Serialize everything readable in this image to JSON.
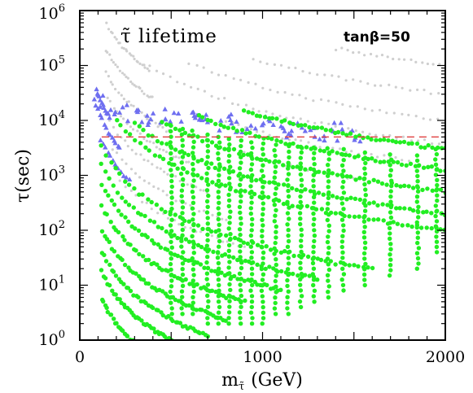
{
  "chart_data": {
    "type": "scatter",
    "title": "τ̃ lifetime",
    "annotation": "tanβ=50",
    "xlabel": "m",
    "xlabel_sub": "τ̃",
    "xlabel_unit": "(GeV)",
    "ylabel": "τ(sec)",
    "xlim": [
      0,
      2000
    ],
    "ylim_log10": [
      0,
      6
    ],
    "y_scale": "log",
    "x_ticks": [
      "0",
      "1000",
      "2000"
    ],
    "y_ticks": [
      {
        "base": "10",
        "exp": "0"
      },
      {
        "base": "10",
        "exp": "1"
      },
      {
        "base": "10",
        "exp": "2"
      },
      {
        "base": "10",
        "exp": "3"
      },
      {
        "base": "10",
        "exp": "4"
      },
      {
        "base": "10",
        "exp": "5"
      },
      {
        "base": "10",
        "exp": "6"
      }
    ],
    "reference_line": {
      "y": 5000,
      "style": "dashed",
      "color": "#e04040"
    },
    "series": [
      {
        "color": "#cfcfcf",
        "marker": "small-dot",
        "curves": [
          {
            "K": 12000000000.0,
            "xmin": 150,
            "xmax": 380,
            "n": 24
          },
          {
            "K": 4000000000.0,
            "xmin": 140,
            "xmax": 400,
            "n": 24
          },
          {
            "K": 1500000000.0,
            "xmin": 140,
            "xmax": 500,
            "n": 26
          },
          {
            "K": 600000000.0,
            "xmin": 150,
            "xmax": 600,
            "n": 26
          },
          {
            "K": 250000000.0,
            "xmin": 160,
            "xmax": 700,
            "n": 26
          },
          {
            "K": 100000000.0,
            "xmin": 180,
            "xmax": 800,
            "n": 26
          },
          {
            "K": 40000000.0,
            "xmin": 220,
            "xmax": 900,
            "n": 24
          },
          {
            "K": 15000000000.0,
            "xmin": 380,
            "xmax": 2000,
            "n": 44
          },
          {
            "K": 40000000000.0,
            "xmin": 600,
            "xmax": 2000,
            "n": 36
          },
          {
            "K": 120000000000.0,
            "xmin": 950,
            "xmax": 2000,
            "n": 28
          },
          {
            "K": 400000000000.0,
            "xmin": 1400,
            "xmax": 2000,
            "n": 20
          },
          {
            "K": 6000000000.0,
            "xmin": 800,
            "xmax": 1800,
            "n": 30
          },
          {
            "K": 2000000000.0,
            "xmin": 900,
            "xmax": 1500,
            "n": 20
          }
        ]
      },
      {
        "color": "#6f6ff0",
        "marker": "triangle",
        "curves": [
          {
            "K": 300000000.0,
            "xmin": 100,
            "xmax": 160,
            "n": 10
          },
          {
            "K": 150000000.0,
            "xmin": 100,
            "xmax": 220,
            "n": 12
          },
          {
            "K": 60000000.0,
            "xmin": 110,
            "xmax": 270,
            "n": 12
          }
        ],
        "band": [
          [
            120,
            20000
          ],
          [
            200,
            13000
          ],
          [
            300,
            10500
          ],
          [
            400,
            9500
          ],
          [
            500,
            9000
          ],
          [
            600,
            8500
          ],
          [
            700,
            8000
          ],
          [
            800,
            7600
          ],
          [
            900,
            7000
          ],
          [
            1000,
            6300
          ],
          [
            1100,
            5700
          ],
          [
            1200,
            5300
          ],
          [
            1300,
            5000
          ],
          [
            1400,
            4900
          ],
          [
            1500,
            4700
          ]
        ]
      },
      {
        "color": "#22ee22",
        "marker": "large-dot",
        "curves": [
          {
            "K": 50000000.0,
            "xmin": 120,
            "xmax": 1600,
            "n": 60
          },
          {
            "K": 22000000.0,
            "xmin": 120,
            "xmax": 1300,
            "n": 55
          },
          {
            "K": 10000000.0,
            "xmin": 120,
            "xmax": 1100,
            "n": 55
          },
          {
            "K": 4000000.0,
            "xmin": 120,
            "xmax": 900,
            "n": 50
          },
          {
            "K": 1500000.0,
            "xmin": 120,
            "xmax": 800,
            "n": 48
          },
          {
            "K": 600000.0,
            "xmin": 120,
            "xmax": 700,
            "n": 44
          },
          {
            "K": 250000.0,
            "xmin": 120,
            "xmax": 500,
            "n": 36
          },
          {
            "K": 80000.0,
            "xmin": 120,
            "xmax": 380,
            "n": 30
          },
          {
            "K": 400000000.0,
            "xmin": 200,
            "xmax": 2000,
            "n": 70
          },
          {
            "K": 800000000.0,
            "xmin": 300,
            "xmax": 2000,
            "n": 70
          },
          {
            "K": 2000000000.0,
            "xmin": 450,
            "xmax": 2000,
            "n": 64
          },
          {
            "K": 5000000000.0,
            "xmin": 650,
            "xmax": 2000,
            "n": 58
          },
          {
            "K": 12000000000.0,
            "xmin": 900,
            "xmax": 2000,
            "n": 50
          }
        ],
        "verticals": [
          {
            "x": 500,
            "ymin": 3,
            "ymax": 8000
          },
          {
            "x": 560,
            "ymin": 3,
            "ymax": 7000
          },
          {
            "x": 620,
            "ymin": 3,
            "ymax": 6500
          },
          {
            "x": 700,
            "ymin": 2,
            "ymax": 5500
          },
          {
            "x": 760,
            "ymin": 2,
            "ymax": 5000
          },
          {
            "x": 820,
            "ymin": 2,
            "ymax": 4600
          },
          {
            "x": 880,
            "ymin": 2,
            "ymax": 4300
          },
          {
            "x": 940,
            "ymin": 2,
            "ymax": 4000
          },
          {
            "x": 1000,
            "ymin": 2,
            "ymax": 3800
          },
          {
            "x": 1070,
            "ymin": 3,
            "ymax": 3600
          },
          {
            "x": 1140,
            "ymin": 3,
            "ymax": 3400
          },
          {
            "x": 1210,
            "ymin": 4,
            "ymax": 3300
          },
          {
            "x": 1280,
            "ymin": 5,
            "ymax": 3200
          },
          {
            "x": 1360,
            "ymin": 6,
            "ymax": 3100
          },
          {
            "x": 1440,
            "ymin": 8,
            "ymax": 3000
          },
          {
            "x": 1560,
            "ymin": 10,
            "ymax": 2600
          },
          {
            "x": 1700,
            "ymin": 15,
            "ymax": 2400
          },
          {
            "x": 1850,
            "ymin": 20,
            "ymax": 2300
          },
          {
            "x": 1950,
            "ymin": 40,
            "ymax": 3000
          }
        ]
      }
    ]
  }
}
